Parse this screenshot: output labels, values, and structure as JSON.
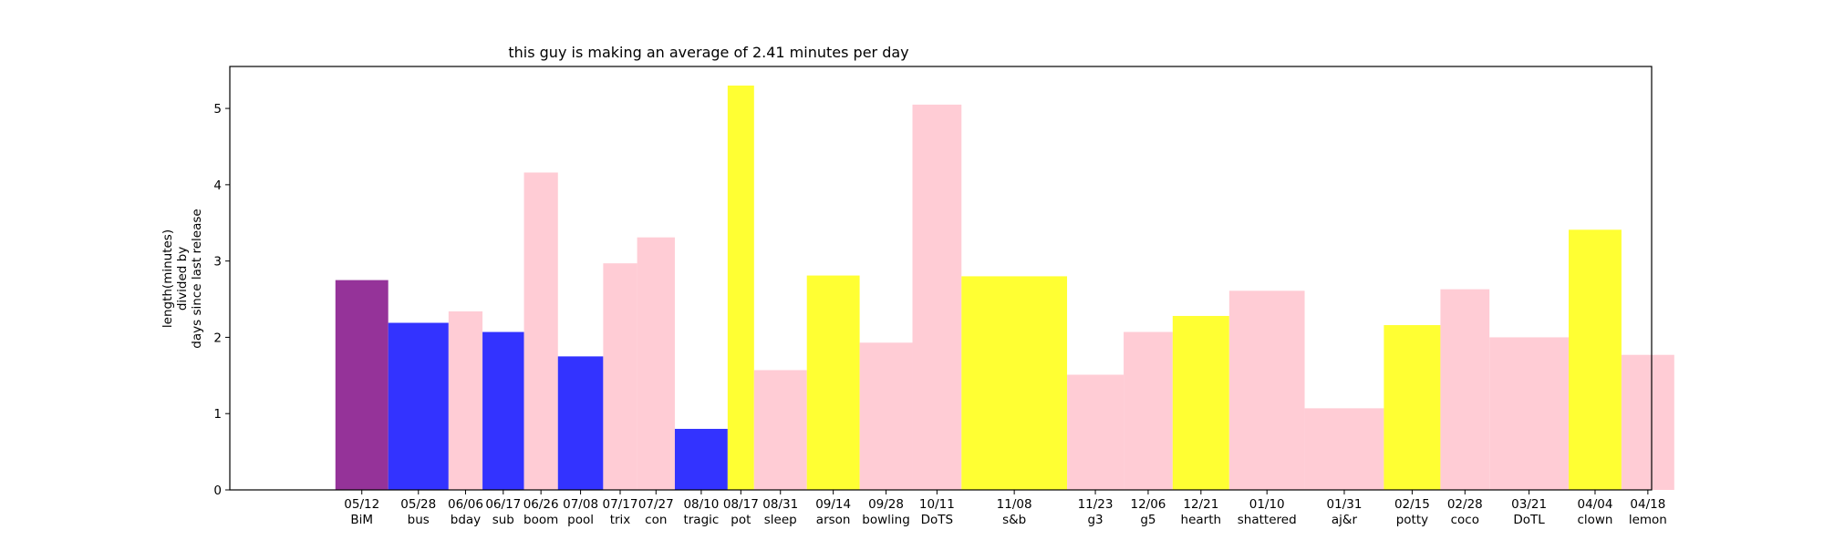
{
  "chart_data": {
    "type": "bar",
    "title": "this guy is making an average of 2.41 minutes per day",
    "ylabel_lines": [
      "length(minutes)",
      "divided by",
      "days since last release"
    ],
    "xlabel": "",
    "ylim": [
      0,
      5.55
    ],
    "yticks": [
      0,
      1,
      2,
      3,
      4,
      5
    ],
    "grid": false,
    "legend": "none",
    "x_days_range": [
      -42,
      335
    ],
    "bars": [
      {
        "date": "05/12",
        "name": "BiM",
        "x_days": 0,
        "width_days": 14,
        "value": 2.75,
        "color": "#953399"
      },
      {
        "date": "05/28",
        "name": "bus",
        "x_days": 16,
        "width_days": 16,
        "value": 2.19,
        "color": "#3333ff"
      },
      {
        "date": "06/06",
        "name": "bday",
        "x_days": 25,
        "width_days": 9,
        "value": 2.34,
        "color": "#ffccd5"
      },
      {
        "date": "06/17",
        "name": "sub",
        "x_days": 36,
        "width_days": 11,
        "value": 2.07,
        "color": "#3333ff"
      },
      {
        "date": "06/26",
        "name": "boom",
        "x_days": 45,
        "width_days": 9,
        "value": 4.16,
        "color": "#ffccd5"
      },
      {
        "date": "07/08",
        "name": "pool",
        "x_days": 57,
        "width_days": 12,
        "value": 1.75,
        "color": "#3333ff"
      },
      {
        "date": "07/17",
        "name": "trix",
        "x_days": 66,
        "width_days": 9,
        "value": 2.97,
        "color": "#ffccd5"
      },
      {
        "date": "07/27",
        "name": "con",
        "x_days": 76,
        "width_days": 10,
        "value": 3.31,
        "color": "#ffccd5"
      },
      {
        "date": "08/10",
        "name": "tragic",
        "x_days": 90,
        "width_days": 14,
        "value": 0.8,
        "color": "#3333ff"
      },
      {
        "date": "08/17",
        "name": "pot",
        "x_days": 97,
        "width_days": 7,
        "value": 5.3,
        "color": "#ffff33"
      },
      {
        "date": "08/31",
        "name": "sleep",
        "x_days": 111,
        "width_days": 14,
        "value": 1.57,
        "color": "#ffccd5"
      },
      {
        "date": "09/14",
        "name": "arson",
        "x_days": 125,
        "width_days": 14,
        "value": 2.81,
        "color": "#ffff33"
      },
      {
        "date": "09/28",
        "name": "bowling",
        "x_days": 139,
        "width_days": 14,
        "value": 1.93,
        "color": "#ffccd5"
      },
      {
        "date": "10/11",
        "name": "DoTS",
        "x_days": 152,
        "width_days": 13,
        "value": 5.05,
        "color": "#ffccd5"
      },
      {
        "date": "11/08",
        "name": "s&b",
        "x_days": 180,
        "width_days": 28,
        "value": 2.8,
        "color": "#ffff33"
      },
      {
        "date": "11/23",
        "name": "g3",
        "x_days": 195,
        "width_days": 15,
        "value": 1.51,
        "color": "#ffccd5"
      },
      {
        "date": "12/06",
        "name": "g5",
        "x_days": 208,
        "width_days": 13,
        "value": 2.07,
        "color": "#ffccd5"
      },
      {
        "date": "12/21",
        "name": "hearth",
        "x_days": 223,
        "width_days": 15,
        "value": 2.28,
        "color": "#ffff33"
      },
      {
        "date": "01/10",
        "name": "shattered",
        "x_days": 243,
        "width_days": 20,
        "value": 2.61,
        "color": "#ffccd5"
      },
      {
        "date": "01/31",
        "name": "aj&r",
        "x_days": 264,
        "width_days": 21,
        "value": 1.07,
        "color": "#ffccd5"
      },
      {
        "date": "02/15",
        "name": "potty",
        "x_days": 279,
        "width_days": 15,
        "value": 2.16,
        "color": "#ffff33"
      },
      {
        "date": "02/28",
        "name": "coco",
        "x_days": 292,
        "width_days": 13,
        "value": 2.63,
        "color": "#ffccd5"
      },
      {
        "date": "03/21",
        "name": "DoTL",
        "x_days": 313,
        "width_days": 21,
        "value": 2.0,
        "color": "#ffccd5"
      },
      {
        "date": "04/04",
        "name": "clown",
        "x_days": 327,
        "width_days": 14,
        "value": 3.41,
        "color": "#ffff33"
      },
      {
        "date": "04/18",
        "name": "lemon",
        "x_days": 341,
        "width_days": 14,
        "value": 1.77,
        "color": "#ffccd5"
      }
    ]
  }
}
